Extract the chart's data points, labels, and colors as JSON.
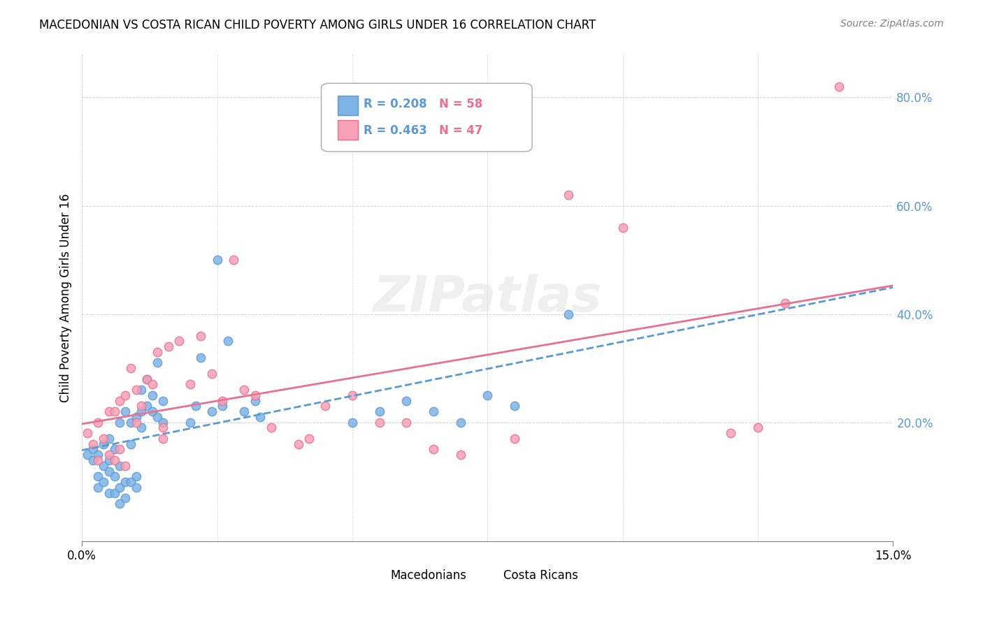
{
  "title": "MACEDONIAN VS COSTA RICAN CHILD POVERTY AMONG GIRLS UNDER 16 CORRELATION CHART",
  "source": "Source: ZipAtlas.com",
  "ylabel": "Child Poverty Among Girls Under 16",
  "xlabel": "",
  "xlim": [
    0.0,
    0.15
  ],
  "ylim": [
    -0.02,
    0.88
  ],
  "xticks": [
    0.0,
    0.15
  ],
  "xtick_labels": [
    "0.0%",
    "15.0%"
  ],
  "ytick_right_values": [
    0.2,
    0.4,
    0.6,
    0.8
  ],
  "ytick_right_labels": [
    "20.0%",
    "40.0%",
    "60.0%",
    "80.0%"
  ],
  "macedonians_color": "#7eb3e8",
  "costa_ricans_color": "#f5a0b5",
  "macedonians_edge": "#5a9ad4",
  "costa_ricans_edge": "#e87090",
  "legend_r1": "R = 0.208",
  "legend_n1": "N = 58",
  "legend_r2": "R = 0.463",
  "legend_n2": "N = 47",
  "watermark": "ZIPatlas",
  "macedonians_x": [
    0.001,
    0.002,
    0.002,
    0.003,
    0.003,
    0.003,
    0.004,
    0.004,
    0.004,
    0.005,
    0.005,
    0.005,
    0.005,
    0.006,
    0.006,
    0.006,
    0.007,
    0.007,
    0.007,
    0.007,
    0.008,
    0.008,
    0.008,
    0.009,
    0.009,
    0.009,
    0.01,
    0.01,
    0.01,
    0.011,
    0.011,
    0.011,
    0.012,
    0.012,
    0.013,
    0.013,
    0.014,
    0.014,
    0.015,
    0.015,
    0.02,
    0.021,
    0.022,
    0.024,
    0.025,
    0.026,
    0.027,
    0.03,
    0.032,
    0.033,
    0.05,
    0.055,
    0.06,
    0.065,
    0.07,
    0.075,
    0.08,
    0.09
  ],
  "macedonians_y": [
    0.14,
    0.13,
    0.15,
    0.1,
    0.08,
    0.14,
    0.16,
    0.12,
    0.09,
    0.07,
    0.11,
    0.13,
    0.17,
    0.07,
    0.1,
    0.15,
    0.05,
    0.08,
    0.12,
    0.2,
    0.06,
    0.09,
    0.22,
    0.09,
    0.16,
    0.2,
    0.08,
    0.1,
    0.21,
    0.19,
    0.22,
    0.26,
    0.23,
    0.28,
    0.22,
    0.25,
    0.21,
    0.31,
    0.2,
    0.24,
    0.2,
    0.23,
    0.32,
    0.22,
    0.5,
    0.23,
    0.35,
    0.22,
    0.24,
    0.21,
    0.2,
    0.22,
    0.24,
    0.22,
    0.2,
    0.25,
    0.23,
    0.4
  ],
  "costa_ricans_x": [
    0.001,
    0.002,
    0.003,
    0.003,
    0.004,
    0.005,
    0.005,
    0.006,
    0.006,
    0.007,
    0.007,
    0.008,
    0.008,
    0.009,
    0.01,
    0.01,
    0.011,
    0.012,
    0.013,
    0.014,
    0.015,
    0.015,
    0.016,
    0.018,
    0.02,
    0.022,
    0.024,
    0.026,
    0.028,
    0.03,
    0.032,
    0.035,
    0.04,
    0.042,
    0.045,
    0.05,
    0.055,
    0.06,
    0.065,
    0.07,
    0.08,
    0.09,
    0.1,
    0.12,
    0.125,
    0.13,
    0.14
  ],
  "costa_ricans_y": [
    0.18,
    0.16,
    0.13,
    0.2,
    0.17,
    0.14,
    0.22,
    0.13,
    0.22,
    0.15,
    0.24,
    0.12,
    0.25,
    0.3,
    0.2,
    0.26,
    0.23,
    0.28,
    0.27,
    0.33,
    0.17,
    0.19,
    0.34,
    0.35,
    0.27,
    0.36,
    0.29,
    0.24,
    0.5,
    0.26,
    0.25,
    0.19,
    0.16,
    0.17,
    0.23,
    0.25,
    0.2,
    0.2,
    0.15,
    0.14,
    0.17,
    0.62,
    0.56,
    0.18,
    0.19,
    0.42,
    0.82
  ]
}
